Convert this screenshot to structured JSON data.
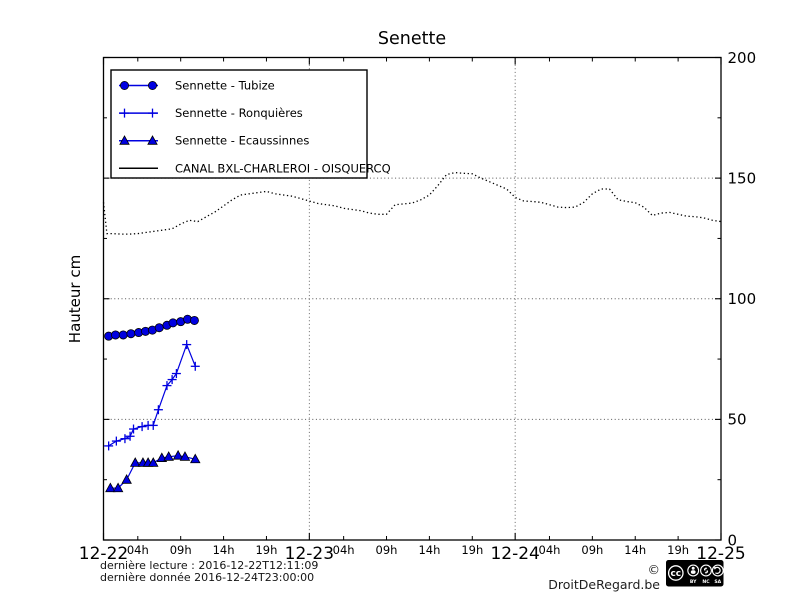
{
  "title": "Senette",
  "ylabel": "Hauteur cm",
  "footer": {
    "last_read_label": "dernière lecture : 2016-12-22T12:11:09",
    "last_data_label": "dernière donnée  2016-12-24T23:00:00",
    "copyright": "© DroitDeRegard.be",
    "license": {
      "cc": "cc",
      "by": "BY",
      "nc": "NC",
      "sa": "SA",
      "nc_symbol": "$"
    }
  },
  "colors": {
    "series_blue": "#0000e0",
    "line_black": "#000000",
    "grid_gray": "#555555"
  },
  "chart_data": {
    "type": "line",
    "title": "Senette",
    "xlabel": "",
    "ylabel": "Hauteur cm",
    "ylim": [
      0,
      200
    ],
    "yticks_labeled": [
      0,
      50,
      100,
      150,
      200
    ],
    "yticks_minor": [
      25,
      75,
      125,
      175
    ],
    "grid_y": [
      50,
      100,
      150
    ],
    "xlim_hours": [
      0,
      72
    ],
    "x_days": [
      "12-22",
      "12-23",
      "12-24",
      "12-25"
    ],
    "x_hour_labels": [
      "04h",
      "09h",
      "14h",
      "19h"
    ],
    "x_hours_offsets": [
      4,
      9,
      14,
      19
    ],
    "grid_x_hours": [
      24,
      48
    ],
    "legend_position": "upper-left",
    "series": [
      {
        "name": "Sennette - Tubize",
        "marker": "circle",
        "style": "solid",
        "color": "#0000e0",
        "x": [
          0.6,
          1.4,
          2.3,
          3.2,
          4.1,
          4.9,
          5.7,
          6.5,
          7.4,
          8.1,
          9.0,
          9.8,
          10.6
        ],
        "y": [
          84.5,
          85,
          85,
          85.5,
          86,
          86.5,
          87,
          88,
          89,
          90,
          90.5,
          91.5,
          91
        ]
      },
      {
        "name": "Sennette - Ronquières",
        "marker": "plus",
        "style": "solid",
        "color": "#0000e0",
        "x": [
          0.6,
          1.5,
          2.5,
          3.1,
          3.5,
          4.5,
          5.2,
          5.8,
          6.4,
          7.4,
          8.0,
          8.5,
          9.7,
          10.7
        ],
        "y": [
          39,
          41,
          42,
          43,
          46,
          47,
          47.5,
          47.5,
          54,
          64,
          66.5,
          69,
          81,
          72
        ]
      },
      {
        "name": "Sennette - Ecaussinnes",
        "marker": "triangle",
        "style": "solid",
        "color": "#0000e0",
        "x": [
          0.8,
          1.7,
          2.7,
          3.7,
          4.6,
          5.2,
          5.8,
          6.8,
          7.6,
          8.7,
          9.5,
          10.7
        ],
        "y": [
          21.5,
          21.5,
          25,
          32,
          32,
          32,
          32,
          34,
          34.5,
          35,
          34.5,
          33.5
        ]
      },
      {
        "name": "CANAL BXL-CHARLEROI  - OISQUERCQ",
        "marker": "none",
        "style": "dotted",
        "color": "#000000",
        "x": [
          0,
          0.4,
          1,
          2,
          3,
          4,
          5,
          6,
          7,
          8,
          9,
          10,
          11,
          12,
          13,
          14,
          15,
          16,
          17,
          18,
          19,
          20,
          21,
          22,
          23,
          24,
          25,
          26,
          27,
          28,
          29,
          30,
          31,
          32,
          33,
          34,
          35,
          36,
          37,
          38,
          39,
          40,
          41,
          42,
          43,
          44,
          45,
          46,
          47,
          48,
          49,
          50,
          51,
          52,
          53,
          54,
          55,
          56,
          57,
          58,
          59,
          60,
          61,
          62,
          63,
          64,
          65,
          66,
          67,
          68,
          69,
          70,
          71,
          72
        ],
        "y": [
          140,
          127,
          127,
          126.8,
          126.8,
          127,
          127.5,
          128,
          128.5,
          129,
          131,
          132.5,
          132,
          134,
          136,
          138.5,
          141,
          143,
          143.5,
          144,
          144.5,
          143.5,
          143,
          142.5,
          141.5,
          140.5,
          139.5,
          139,
          138.5,
          137.5,
          137,
          136.5,
          135.5,
          135,
          135,
          139,
          139.3,
          139.7,
          141,
          143,
          147,
          151.5,
          152.3,
          152,
          151.8,
          150,
          148.5,
          147,
          145.5,
          142,
          140.5,
          140.3,
          140,
          139,
          138,
          137.8,
          138,
          140,
          143.5,
          145.5,
          145.5,
          141,
          140.3,
          139.8,
          138,
          134.5,
          135.5,
          135.8,
          135,
          134.2,
          134,
          133.5,
          132.5,
          132
        ]
      }
    ]
  }
}
